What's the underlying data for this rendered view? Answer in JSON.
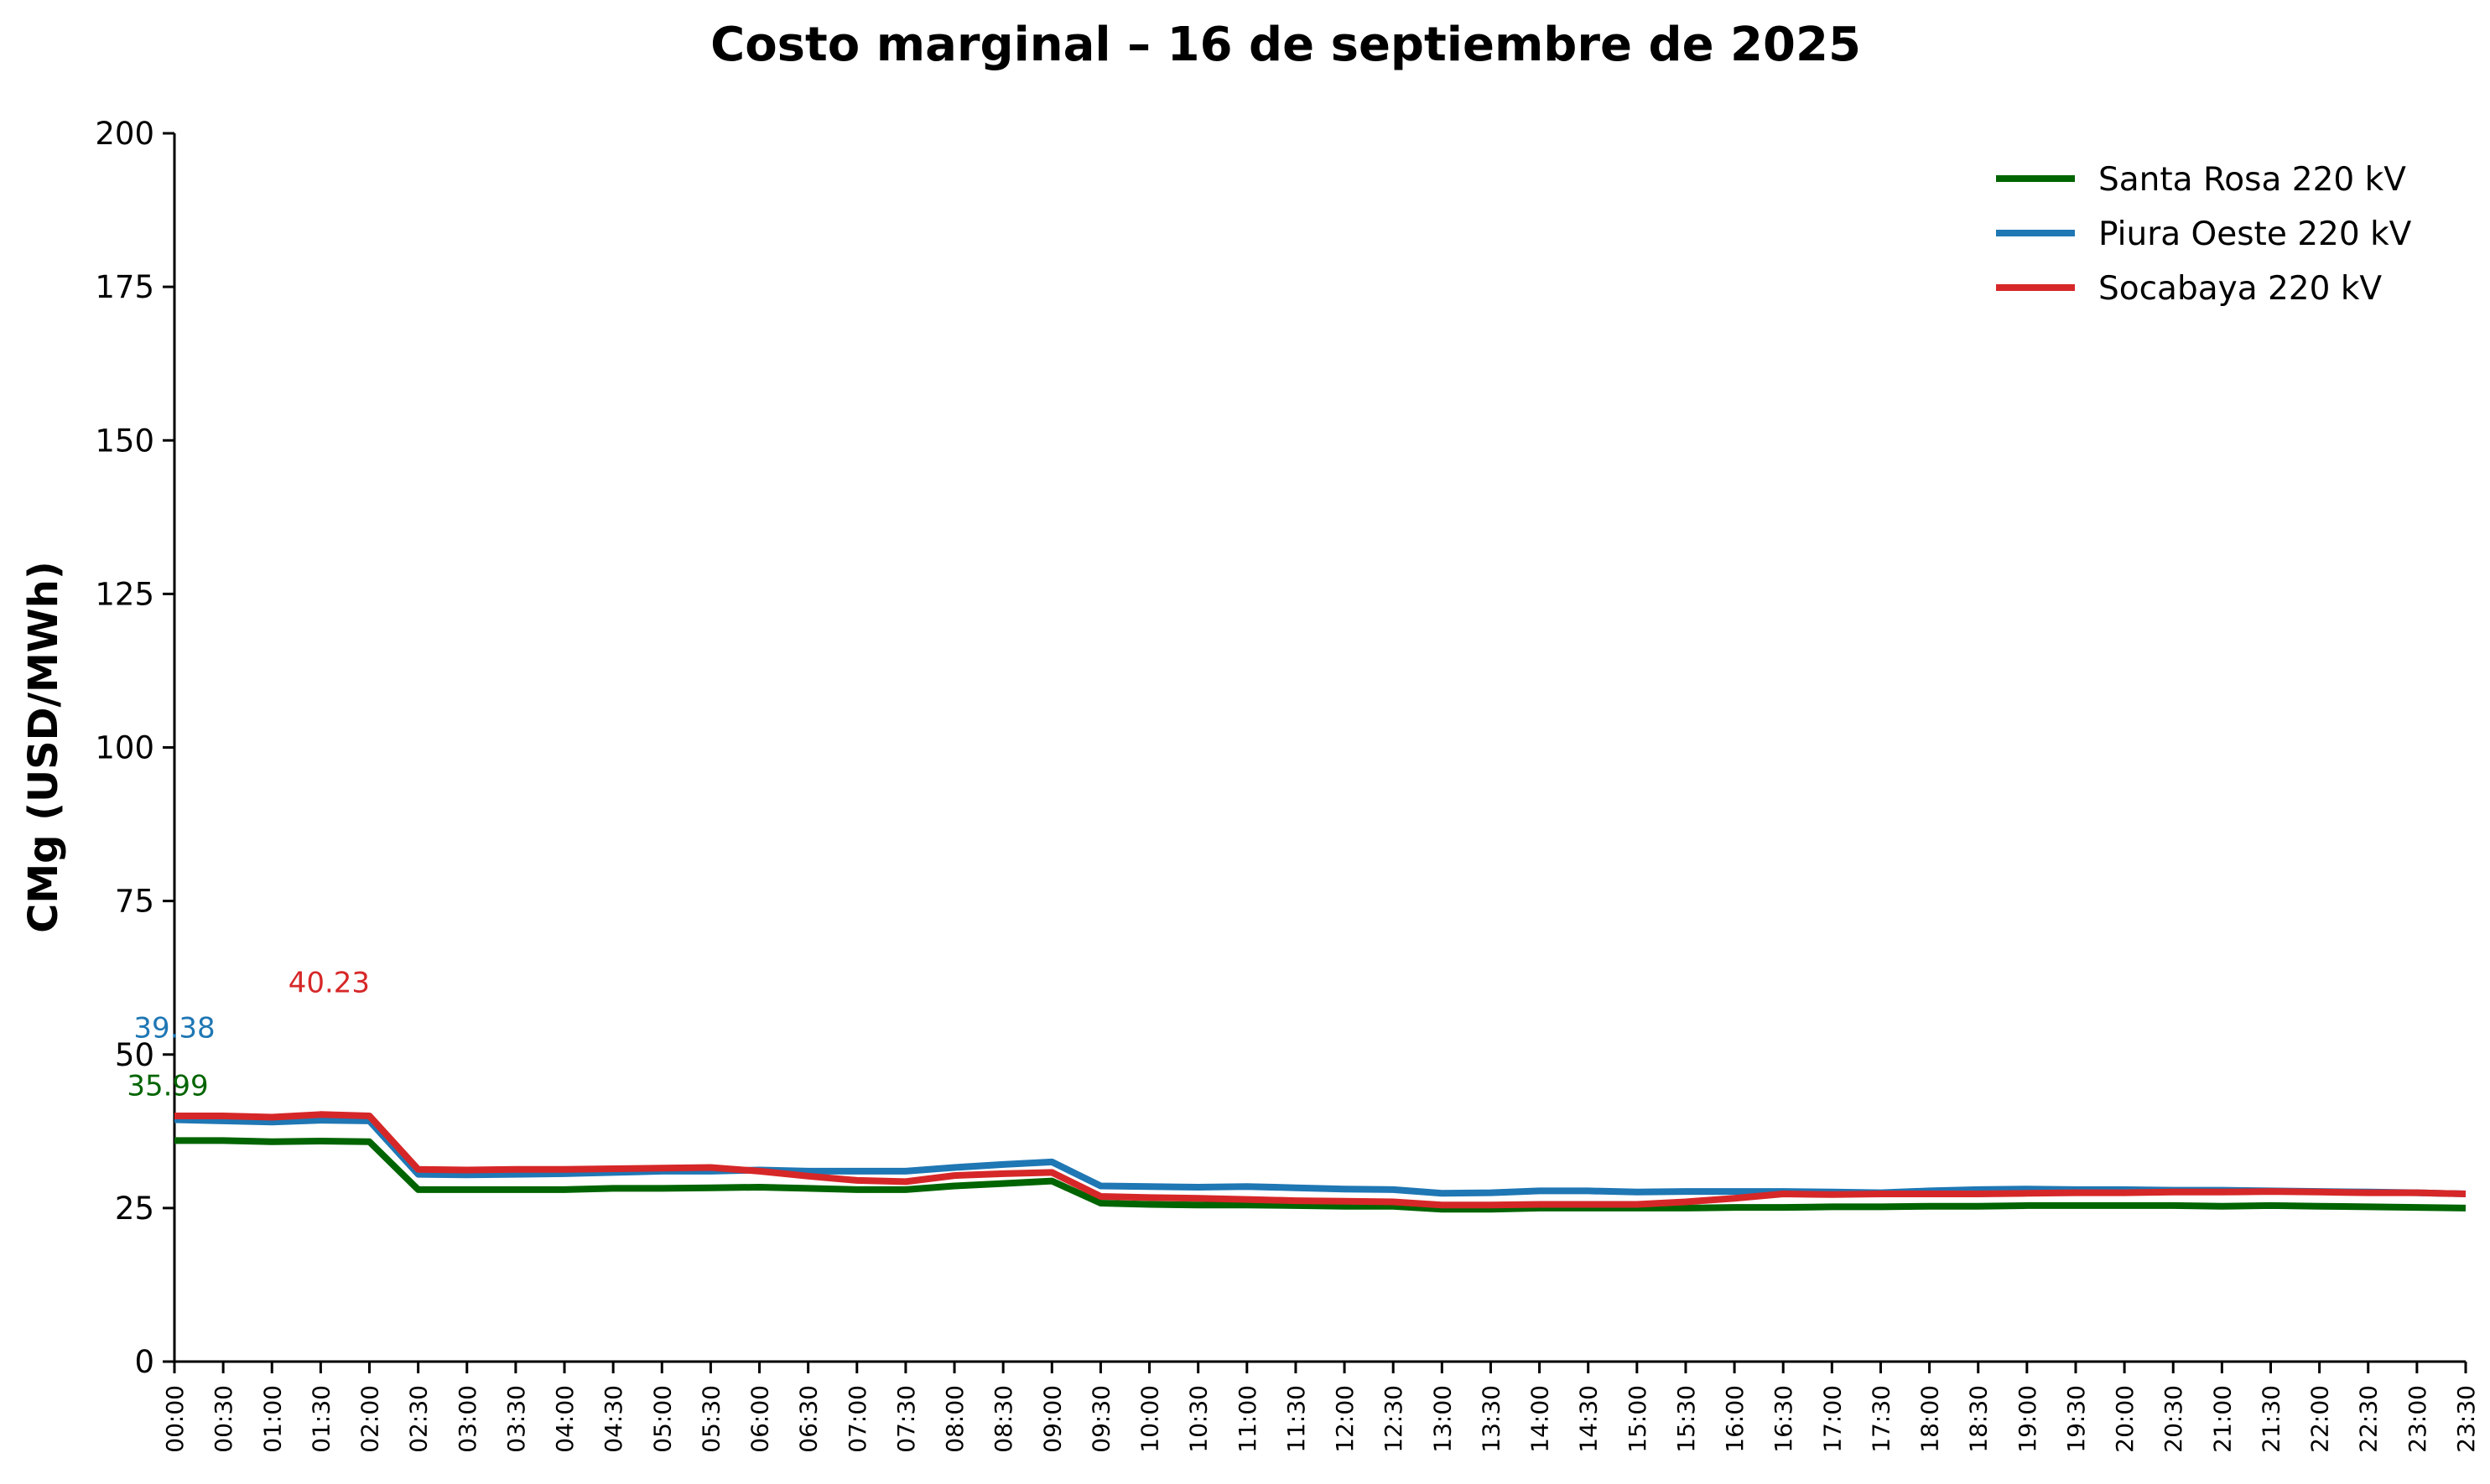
{
  "chart_data": {
    "type": "line",
    "title": "Costo marginal – 16 de septiembre de 2025",
    "xlabel": "",
    "ylabel": "CMg (USD/MWh)",
    "ylim": [
      0,
      200
    ],
    "yticks": [
      0,
      25,
      50,
      75,
      100,
      125,
      150,
      175,
      200
    ],
    "grid": false,
    "legend_position": "top-right",
    "categories": [
      "00:00",
      "00:30",
      "01:00",
      "01:30",
      "02:00",
      "02:30",
      "03:00",
      "03:30",
      "04:00",
      "04:30",
      "05:00",
      "05:30",
      "06:00",
      "06:30",
      "07:00",
      "07:30",
      "08:00",
      "08:30",
      "09:00",
      "09:30",
      "10:00",
      "10:30",
      "11:00",
      "11:30",
      "12:00",
      "12:30",
      "13:00",
      "13:30",
      "14:00",
      "14:30",
      "15:00",
      "15:30",
      "16:00",
      "16:30",
      "17:00",
      "17:30",
      "18:00",
      "18:30",
      "19:00",
      "19:30",
      "20:00",
      "20:30",
      "21:00",
      "21:30",
      "22:00",
      "22:30",
      "23:00",
      "23:30"
    ],
    "series": [
      {
        "name": "Santa Rosa 220 kV",
        "color": "#006400",
        "values": [
          35.99,
          35.99,
          35.8,
          35.9,
          35.8,
          28.0,
          28.0,
          28.0,
          28.0,
          28.2,
          28.2,
          28.3,
          28.4,
          28.2,
          28.0,
          28.0,
          28.6,
          29.0,
          29.4,
          25.8,
          25.6,
          25.5,
          25.5,
          25.4,
          25.3,
          25.3,
          24.8,
          24.8,
          25.0,
          25.0,
          25.0,
          25.0,
          25.1,
          25.1,
          25.2,
          25.2,
          25.3,
          25.3,
          25.4,
          25.4,
          25.4,
          25.4,
          25.3,
          25.4,
          25.3,
          25.2,
          25.1,
          25.0
        ]
      },
      {
        "name": "Piura Oeste 220 kV",
        "color": "#1f77b4",
        "values": [
          39.38,
          39.2,
          39.0,
          39.3,
          39.2,
          30.5,
          30.4,
          30.5,
          30.6,
          30.8,
          31.0,
          31.0,
          31.2,
          31.0,
          31.0,
          31.0,
          31.6,
          32.1,
          32.5,
          28.6,
          28.5,
          28.4,
          28.5,
          28.3,
          28.1,
          28.0,
          27.4,
          27.5,
          27.8,
          27.8,
          27.6,
          27.7,
          27.7,
          27.7,
          27.6,
          27.5,
          27.8,
          28.0,
          28.1,
          28.0,
          28.0,
          27.9,
          27.9,
          27.8,
          27.7,
          27.6,
          27.5,
          27.3
        ]
      },
      {
        "name": "Socabaya 220 kV",
        "color": "#d62728",
        "values": [
          40.0,
          40.0,
          39.8,
          40.23,
          40.0,
          31.3,
          31.2,
          31.3,
          31.3,
          31.4,
          31.5,
          31.6,
          31.0,
          30.2,
          29.5,
          29.3,
          30.3,
          30.6,
          30.8,
          26.9,
          26.7,
          26.6,
          26.4,
          26.2,
          26.1,
          26.0,
          25.5,
          25.5,
          25.6,
          25.6,
          25.6,
          26.0,
          26.6,
          27.3,
          27.2,
          27.3,
          27.3,
          27.3,
          27.4,
          27.5,
          27.5,
          27.6,
          27.6,
          27.7,
          27.6,
          27.5,
          27.5,
          27.3
        ]
      }
    ],
    "annotations": [
      {
        "text": "35.99",
        "series": 0,
        "x": "00:00",
        "y": 35.99,
        "color": "#006400"
      },
      {
        "text": "39.38",
        "series": 1,
        "x": "00:00",
        "y": 39.38,
        "color": "#1f77b4"
      },
      {
        "text": "40.23",
        "series": 2,
        "x": "01:30",
        "y": 40.23,
        "color": "#d62728"
      }
    ]
  }
}
